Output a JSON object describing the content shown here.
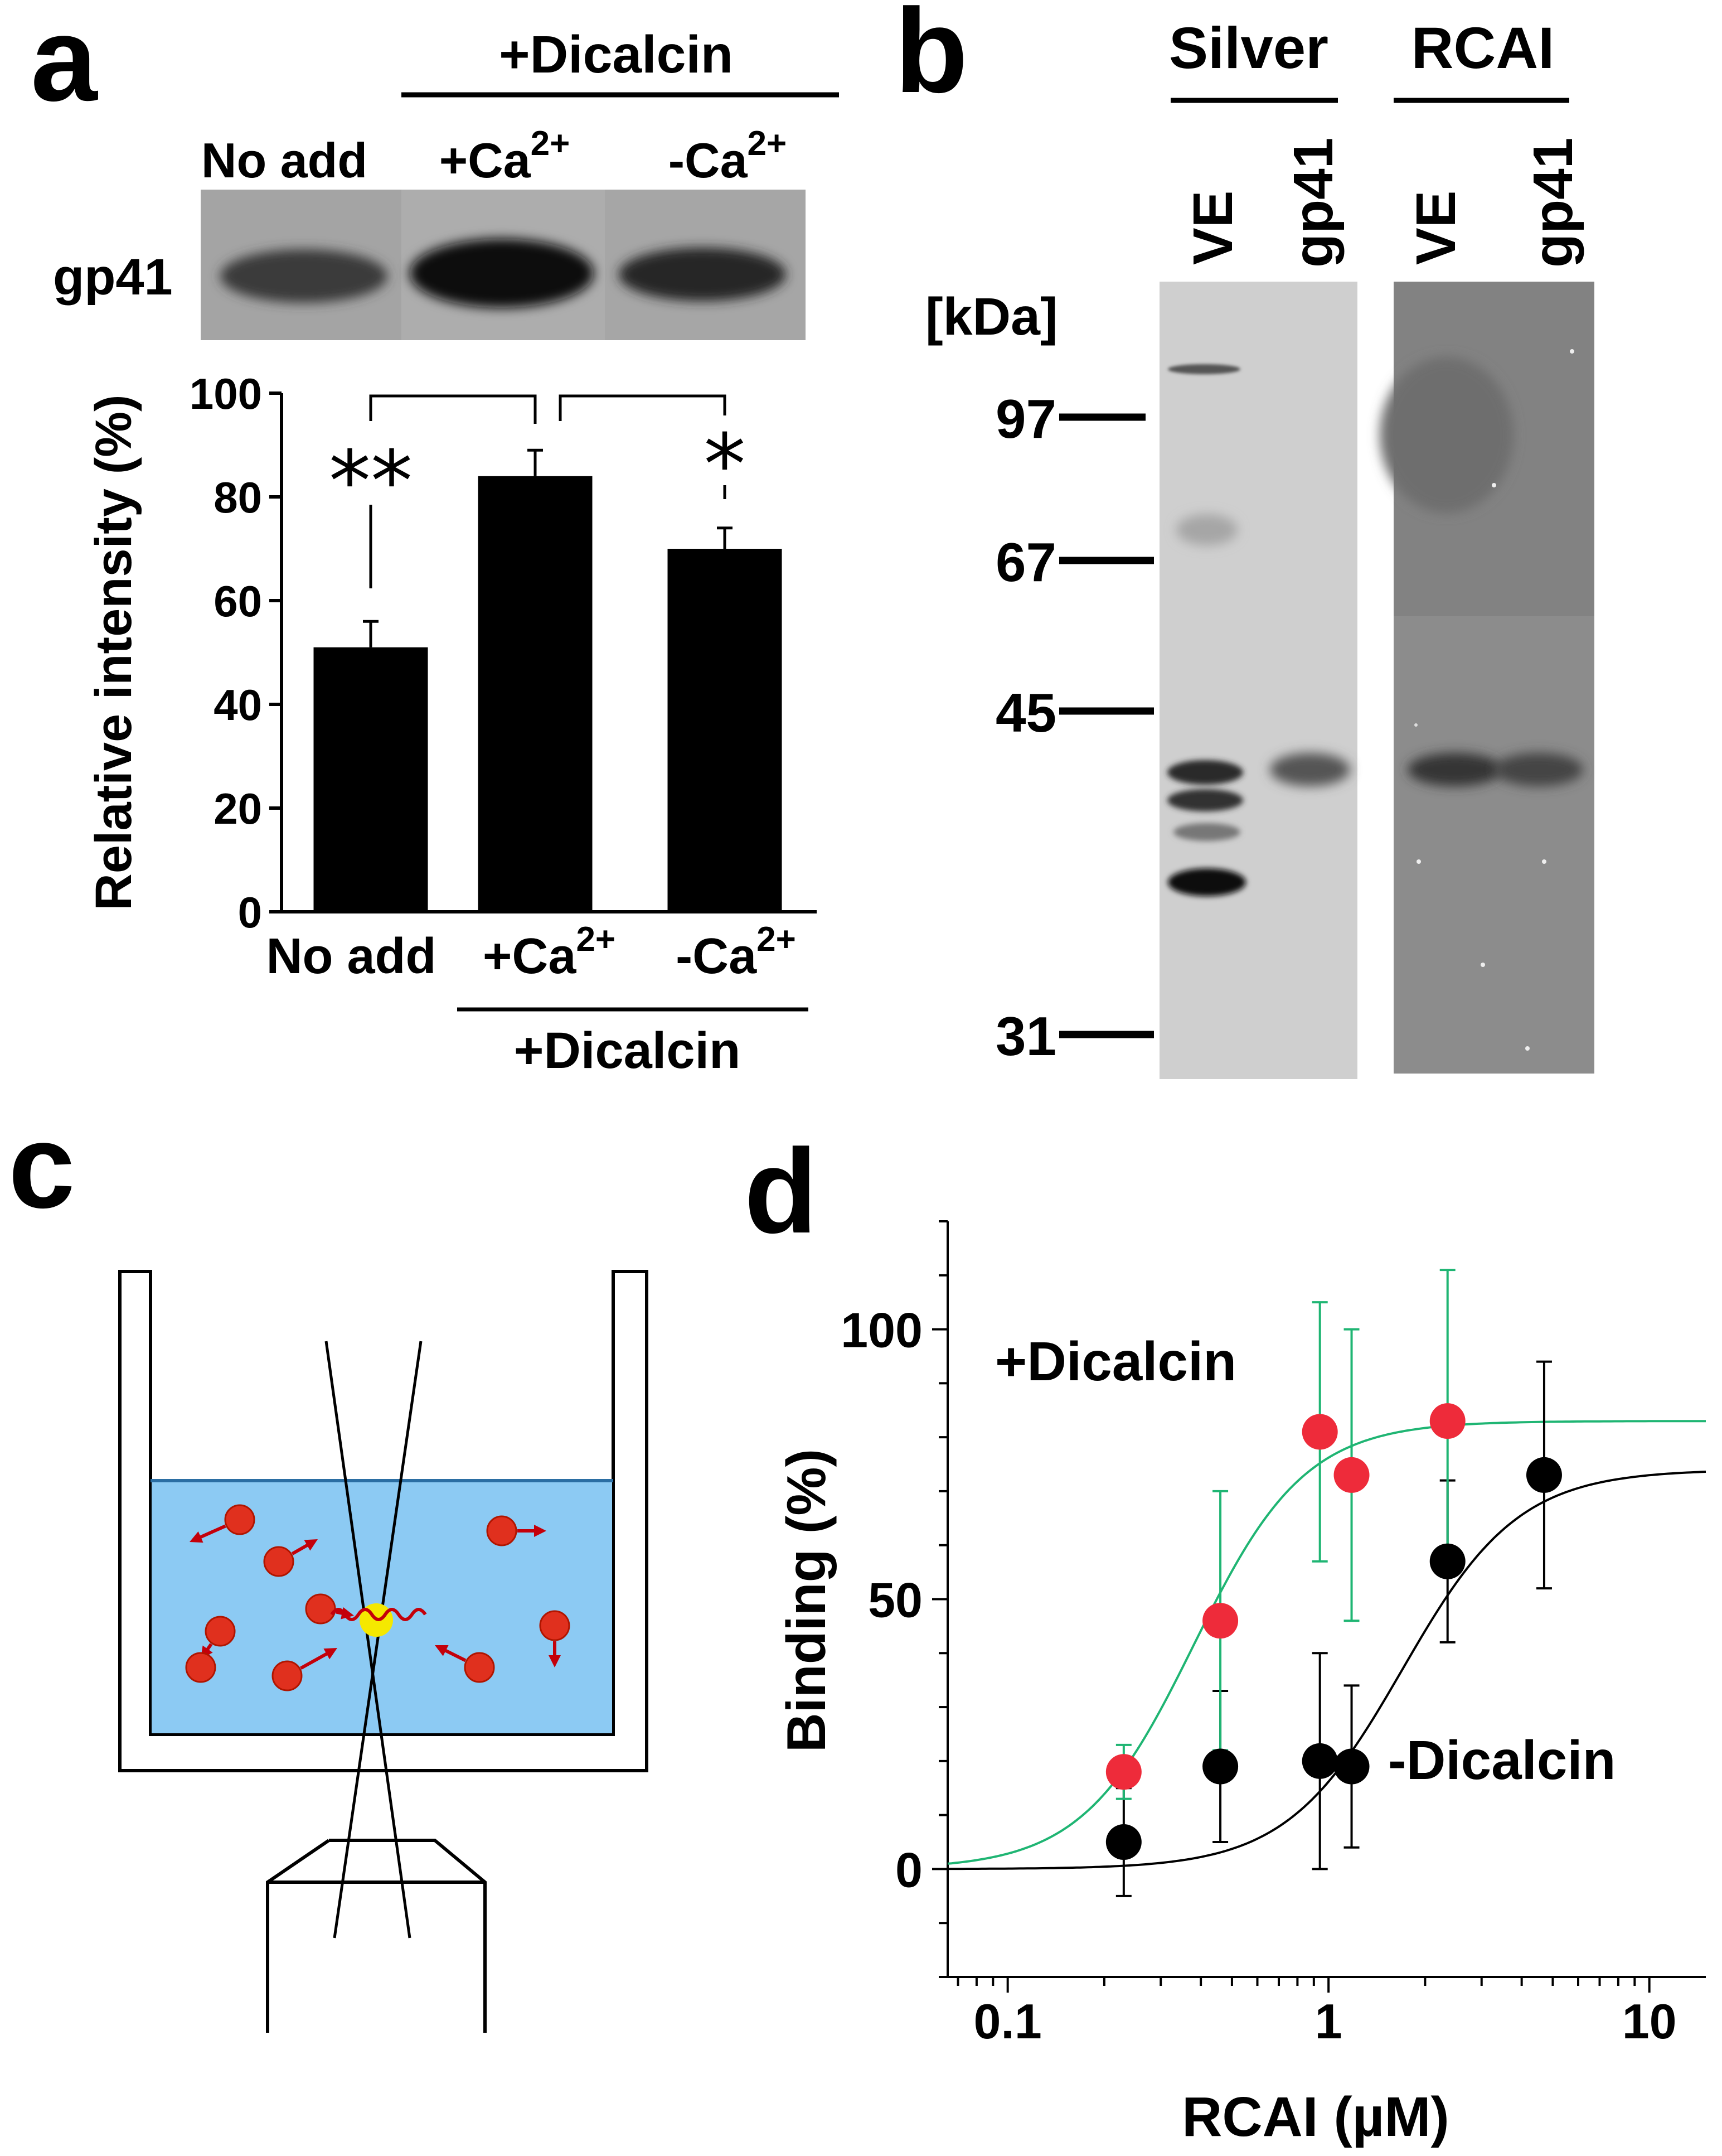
{
  "panels": {
    "a": {
      "letter": "a",
      "blot": {
        "header_group": "+Dicalcin",
        "lanes": [
          {
            "label": "No add",
            "sup": ""
          },
          {
            "label": "+Ca",
            "sup": "2+"
          },
          {
            "label": "-Ca",
            "sup": "2+"
          }
        ],
        "row_label": "gp41"
      },
      "stars": [
        "**",
        "*"
      ],
      "bottom_group": "+Dicalcin"
    },
    "b": {
      "letter": "b",
      "groups": [
        "Silver",
        "RCAI"
      ],
      "lanes": [
        "VE",
        "gp41",
        "VE",
        "gp41"
      ],
      "unit": "[kDa]",
      "markers": [
        "97",
        "67",
        "45",
        "31"
      ]
    },
    "c": {
      "letter": "c"
    },
    "d": {
      "letter": "d",
      "labels": {
        "plus": "+Dicalcin",
        "minus": "-Dicalcin"
      }
    },
    "colors": {
      "plus_points": "#ee2b3a",
      "plus_fit": "#1fb573",
      "minus_points": "#000000",
      "water": "#8ccaf3",
      "particle": "#e0301e",
      "focus": "#f5e800"
    }
  },
  "chart_data": [
    {
      "type": "bar",
      "categories": [
        "No add",
        "+Ca2+",
        "-Ca2+"
      ],
      "values": [
        51,
        84,
        70
      ],
      "errors": [
        5,
        5,
        4
      ],
      "ylabel": "Relative intensity (%)",
      "ylim": [
        0,
        100
      ],
      "yticks": [
        0,
        20,
        40,
        60,
        80,
        100
      ],
      "category_labels": [
        {
          "text": "No add",
          "sup": ""
        },
        {
          "text": "+Ca",
          "sup": "2+"
        },
        {
          "text": "-Ca",
          "sup": "2+"
        }
      ],
      "group_label": "+Dicalcin"
    },
    {
      "type": "scatter",
      "xlabel": "RCAI (µM)",
      "ylabel": "Binding (%)",
      "xscale": "log",
      "xlim": [
        0.065,
        15
      ],
      "ylim": [
        -20,
        120
      ],
      "xticks": [
        "0.1",
        "1",
        "10"
      ],
      "yticks": [
        0,
        50,
        100
      ],
      "series": [
        {
          "name": "+Dicalcin",
          "x": [
            0.23,
            0.46,
            0.94,
            1.18,
            2.35
          ],
          "y": [
            18,
            46,
            81,
            73,
            83
          ],
          "err": [
            5,
            24,
            24,
            27,
            28
          ],
          "fit": {
            "top": 83,
            "ec50": 0.38,
            "hill": 2.5
          }
        },
        {
          "name": "-Dicalcin",
          "x": [
            0.23,
            0.46,
            0.94,
            1.18,
            2.35,
            4.7
          ],
          "y": [
            5,
            19,
            20,
            19,
            57,
            73
          ],
          "err": [
            10,
            14,
            20,
            15,
            15,
            21
          ],
          "fit": {
            "top": 74,
            "ec50": 1.7,
            "hill": 2.4
          }
        }
      ]
    }
  ]
}
